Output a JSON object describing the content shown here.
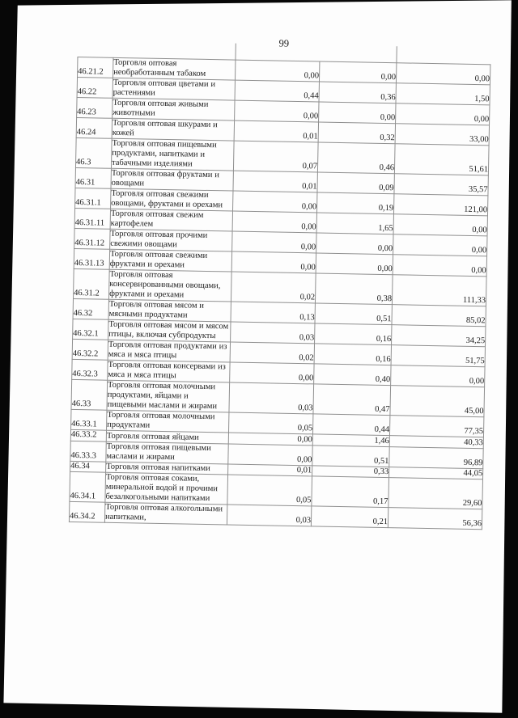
{
  "page": {
    "number": "99"
  },
  "colors": {
    "paper": "#fdfdfd",
    "scan_border": "#070707",
    "table_line": "#8f8f8f",
    "text": "#1c1c1c"
  },
  "table": {
    "rows": [
      {
        "code": "46.21.2",
        "description": "Торговля оптовая необработанным табаком",
        "values": [
          "0,00",
          "0,00",
          "0,00"
        ]
      },
      {
        "code": "46.22",
        "description": "Торговля оптовая цветами и растениями",
        "values": [
          "0,44",
          "0,36",
          "1,50"
        ]
      },
      {
        "code": "46.23",
        "description": "Торговля оптовая живыми животными",
        "values": [
          "0,00",
          "0,00",
          "0,00"
        ]
      },
      {
        "code": "46.24",
        "description": "Торговля оптовая шкурами и кожей",
        "values": [
          "0,01",
          "0,32",
          "33,00"
        ]
      },
      {
        "code": "46.3",
        "description": "Торговля оптовая пищевыми продуктами, напитками и табачными изделиями",
        "values": [
          "0,07",
          "0,46",
          "51,61"
        ]
      },
      {
        "code": "46.31",
        "description": "Торговля оптовая фруктами и овощами",
        "values": [
          "0,01",
          "0,09",
          "35,57"
        ]
      },
      {
        "code": "46.31.1",
        "description": "Торговля оптовая свежими овощами, фруктами и орехами",
        "values": [
          "0,00",
          "0,19",
          "121,00"
        ]
      },
      {
        "code": "46.31.11",
        "description": "Торговля оптовая свежим картофелем",
        "values": [
          "0,00",
          "1,65",
          "0,00"
        ]
      },
      {
        "code": "46.31.12",
        "description": "Торговля оптовая прочими свежими овощами",
        "values": [
          "0,00",
          "0,00",
          "0,00"
        ]
      },
      {
        "code": "46.31.13",
        "description": "Торговля оптовая свежими фруктами и орехами",
        "values": [
          "0,00",
          "0,00",
          "0,00"
        ]
      },
      {
        "code": "46.31.2",
        "description": "Торговля оптовая консервированными овощами, фруктами и орехами",
        "values": [
          "0,02",
          "0,38",
          "111,33"
        ]
      },
      {
        "code": "46.32",
        "description": "Торговля оптовая мясом и мясными продуктами",
        "values": [
          "0,13",
          "0,51",
          "85,02"
        ]
      },
      {
        "code": "46.32.1",
        "description": "Торговля оптовая мясом и мясом птицы, включая субпродукты",
        "values": [
          "0,03",
          "0,16",
          "34,25"
        ]
      },
      {
        "code": "46.32.2",
        "description": "Торговля оптовая продуктами из мяса и мяса птицы",
        "values": [
          "0,02",
          "0,16",
          "51,75"
        ]
      },
      {
        "code": "46.32.3",
        "description": "Торговля оптовая консервами из мяса и мяса птицы",
        "values": [
          "0,00",
          "0,40",
          "0,00"
        ]
      },
      {
        "code": "46.33",
        "description": "Торговля оптовая молочными продуктами, яйцами и пищевыми маслами и жирами",
        "values": [
          "0,03",
          "0,47",
          "45,00"
        ]
      },
      {
        "code": "46.33.1",
        "description": "Торговля оптовая молочными продуктами",
        "values": [
          "0,05",
          "0,44",
          "77,35"
        ]
      },
      {
        "code": "46.33.2",
        "description": "Торговля оптовая яйцами",
        "values": [
          "0,00",
          "1,46",
          "40,33"
        ]
      },
      {
        "code": "46.33.3",
        "description": "Торговля оптовая пищевыми маслами и жирами",
        "values": [
          "0,00",
          "0,51",
          "96,89"
        ]
      },
      {
        "code": "46.34",
        "description": "Торговля оптовая напитками",
        "values": [
          "0,01",
          "0,33",
          "44,05"
        ]
      },
      {
        "code": "46.34.1",
        "description": "Торговля оптовая соками, минеральной водой и прочими безалкогольными напитками",
        "values": [
          "0,05",
          "0,17",
          "29,60"
        ]
      },
      {
        "code": "46.34.2",
        "description": "Торговля оптовая алкогольными напитками,",
        "values": [
          "0,03",
          "0,21",
          "56,36"
        ]
      }
    ]
  }
}
